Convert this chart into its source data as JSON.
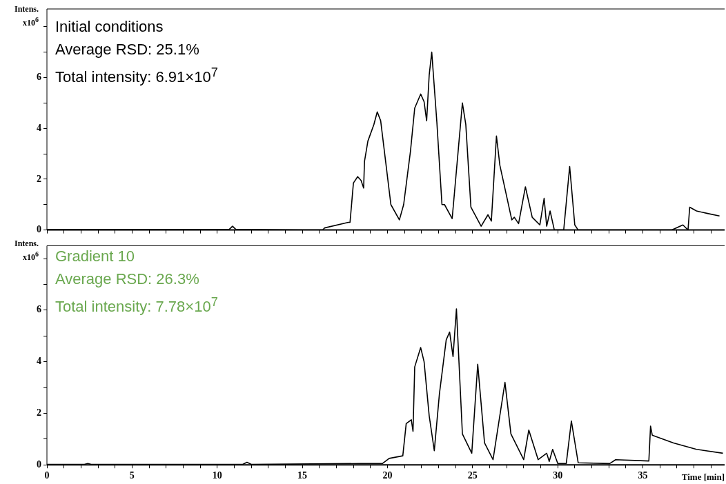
{
  "chart_data": [
    {
      "type": "line",
      "title": "Initial conditions",
      "annotations": [
        "Average RSD: 25.1%",
        "Total intensity: 6.91×10$^{7}$"
      ],
      "ylabel": "Intens. x10$^{6}$",
      "xlim": [
        0,
        39.8
      ],
      "ylim": [
        0,
        8.7
      ],
      "xticks": [
        0,
        {
          "value": 1,
          "label": null
        },
        {
          "value": 2,
          "label": null
        },
        {
          "value": 3,
          "label": null
        },
        {
          "value": 4,
          "label": null
        },
        5,
        {
          "value": 6,
          "label": null
        },
        {
          "value": 7,
          "label": null
        },
        {
          "value": 8,
          "label": null
        },
        {
          "value": 9,
          "label": null
        },
        10,
        {
          "value": 11,
          "label": null
        },
        {
          "value": 12,
          "label": null
        },
        {
          "value": 13,
          "label": null
        },
        {
          "value": 14,
          "label": null
        },
        15,
        {
          "value": 16,
          "label": null
        },
        {
          "value": 17,
          "label": null
        },
        {
          "value": 18,
          "label": null
        },
        {
          "value": 19,
          "label": null
        },
        20,
        {
          "value": 21,
          "label": null
        },
        {
          "value": 22,
          "label": null
        },
        {
          "value": 23,
          "label": null
        },
        {
          "value": 24,
          "label": null
        },
        25,
        {
          "value": 26,
          "label": null
        },
        {
          "value": 27,
          "label": null
        },
        {
          "value": 28,
          "label": null
        },
        {
          "value": 29,
          "label": null
        },
        30,
        {
          "value": 31,
          "label": null
        },
        {
          "value": 32,
          "label": null
        },
        {
          "value": 33,
          "label": null
        },
        {
          "value": 34,
          "label": null
        },
        35,
        {
          "value": 36,
          "label": null
        },
        {
          "value": 37,
          "label": null
        },
        {
          "value": 38,
          "label": null
        },
        {
          "value": 39,
          "label": null
        }
      ],
      "yticks": [
        0,
        {
          "value": 1,
          "label": null
        },
        2,
        {
          "value": 3,
          "label": null
        },
        4,
        {
          "value": 5,
          "label": null
        },
        6,
        {
          "value": 7,
          "label": null
        },
        {
          "value": 8,
          "label": null
        }
      ],
      "tick_labels": "y",
      "grid": false,
      "legend": false,
      "marker": "none",
      "series": [
        {
          "color": "#000000",
          "x": [
            0,
            5,
            10,
            10.7,
            10.9,
            11.1,
            15.1,
            16.2,
            16.3,
            17.7,
            17.8,
            18.0,
            18.25,
            18.45,
            18.6,
            18.65,
            18.85,
            19.2,
            19.4,
            19.6,
            19.9,
            20.2,
            20.7,
            20.95,
            21.35,
            21.6,
            21.95,
            22.15,
            22.3,
            22.45,
            22.6,
            22.9,
            23.2,
            23.35,
            23.8,
            24.15,
            24.4,
            24.6,
            24.9,
            25.5,
            25.9,
            26.1,
            26.4,
            26.6,
            27.3,
            27.45,
            27.7,
            28.1,
            28.5,
            28.95,
            29.2,
            29.35,
            29.55,
            29.8,
            30.35,
            30.7,
            31.0,
            31.2,
            36.7,
            37.35,
            37.65,
            37.75,
            38.15,
            38.8,
            39.5
          ],
          "values": [
            0.02,
            0.02,
            0.02,
            0.02,
            0.15,
            0.02,
            0.0,
            0.0,
            0.08,
            0.3,
            0.3,
            1.85,
            2.1,
            1.95,
            1.65,
            2.7,
            3.5,
            4.15,
            4.65,
            4.3,
            2.65,
            1.0,
            0.4,
            1.0,
            3.1,
            4.8,
            5.35,
            5.05,
            4.3,
            6.1,
            7.0,
            4.25,
            1.0,
            1.0,
            0.45,
            3.1,
            5.0,
            4.15,
            0.9,
            0.15,
            0.6,
            0.35,
            3.7,
            2.55,
            0.4,
            0.5,
            0.25,
            1.7,
            0.5,
            0.2,
            1.25,
            0.15,
            0.75,
            0.0,
            0.0,
            2.5,
            0.2,
            0.0,
            0.0,
            0.2,
            0.0,
            0.9,
            0.75,
            0.65,
            0.55
          ]
        }
      ]
    },
    {
      "type": "line",
      "title": "Gradient 10",
      "annotations": [
        "Average RSD: 26.3%",
        "Total intensity: 7.78×10$^{7}$"
      ],
      "ylabel": "Intens. x10$^{6}$",
      "xlabel": "Time [min]",
      "xlim": [
        0,
        39.8
      ],
      "ylim": [
        0,
        8.5
      ],
      "xticks": [
        0,
        {
          "value": 1,
          "label": null
        },
        {
          "value": 2,
          "label": null
        },
        {
          "value": 3,
          "label": null
        },
        {
          "value": 4,
          "label": null
        },
        5,
        {
          "value": 6,
          "label": null
        },
        {
          "value": 7,
          "label": null
        },
        {
          "value": 8,
          "label": null
        },
        {
          "value": 9,
          "label": null
        },
        10,
        {
          "value": 11,
          "label": null
        },
        {
          "value": 12,
          "label": null
        },
        {
          "value": 13,
          "label": null
        },
        {
          "value": 14,
          "label": null
        },
        15,
        {
          "value": 16,
          "label": null
        },
        {
          "value": 17,
          "label": null
        },
        {
          "value": 18,
          "label": null
        },
        {
          "value": 19,
          "label": null
        },
        20,
        {
          "value": 21,
          "label": null
        },
        {
          "value": 22,
          "label": null
        },
        {
          "value": 23,
          "label": null
        },
        {
          "value": 24,
          "label": null
        },
        25,
        {
          "value": 26,
          "label": null
        },
        {
          "value": 27,
          "label": null
        },
        {
          "value": 28,
          "label": null
        },
        {
          "value": 29,
          "label": null
        },
        30,
        {
          "value": 31,
          "label": null
        },
        {
          "value": 32,
          "label": null
        },
        {
          "value": 33,
          "label": null
        },
        {
          "value": 34,
          "label": null
        },
        35,
        {
          "value": 36,
          "label": null
        },
        {
          "value": 37,
          "label": null
        },
        {
          "value": 38,
          "label": null
        },
        {
          "value": 39,
          "label": null
        }
      ],
      "yticks": [
        0,
        {
          "value": 1,
          "label": null
        },
        2,
        {
          "value": 3,
          "label": null
        },
        4,
        {
          "value": 5,
          "label": null
        },
        6,
        {
          "value": 7,
          "label": null
        },
        {
          "value": 8,
          "label": null
        }
      ],
      "grid": false,
      "legend": false,
      "marker": "none",
      "series": [
        {
          "color": "#000000",
          "x": [
            0,
            2.2,
            2.4,
            2.6,
            11.5,
            11.75,
            12.0,
            18.4,
            19.7,
            20.1,
            20.9,
            21.1,
            21.4,
            21.5,
            21.6,
            21.95,
            22.15,
            22.45,
            22.75,
            23.05,
            23.45,
            23.65,
            23.85,
            24.05,
            24.4,
            24.95,
            25.3,
            25.7,
            26.2,
            26.9,
            27.25,
            28.0,
            28.3,
            28.85,
            29.35,
            29.5,
            29.7,
            30.0,
            30.5,
            30.8,
            31.2,
            33.05,
            33.4,
            35.35,
            35.45,
            35.55,
            36.8,
            38.15,
            39.7
          ],
          "values": [
            0.02,
            0.02,
            0.05,
            0.02,
            0.02,
            0.1,
            0.02,
            0.05,
            0.05,
            0.25,
            0.35,
            1.6,
            1.75,
            1.3,
            3.8,
            4.55,
            4.0,
            1.9,
            0.55,
            2.75,
            4.85,
            5.15,
            4.2,
            6.05,
            1.2,
            0.45,
            3.9,
            0.85,
            0.2,
            3.2,
            1.2,
            0.2,
            1.35,
            0.2,
            0.45,
            0.13,
            0.6,
            0.05,
            0.05,
            1.7,
            0.08,
            0.05,
            0.2,
            0.15,
            1.5,
            1.15,
            0.85,
            0.6,
            0.45
          ]
        }
      ]
    }
  ]
}
